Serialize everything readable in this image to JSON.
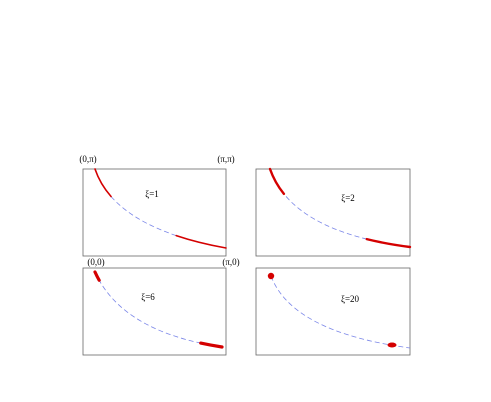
{
  "corners": {
    "top_left": "(0,π)",
    "top_right": "(π,π)",
    "bottom_left": "(0,0)",
    "bottom_right": "(π,0)"
  },
  "panels": [
    {
      "label": "ξ=1"
    },
    {
      "label": "ξ=2"
    },
    {
      "label": "ξ=6"
    },
    {
      "label": "ξ=20"
    }
  ]
}
